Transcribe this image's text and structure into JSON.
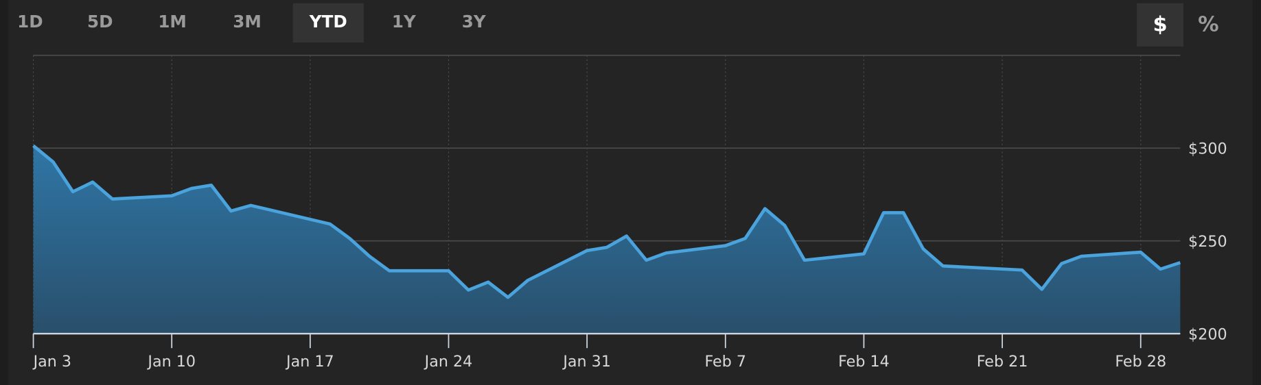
{
  "tabs": {
    "items": [
      "1D",
      "5D",
      "1M",
      "3M",
      "YTD",
      "1Y",
      "3Y"
    ],
    "active": 4
  },
  "units": {
    "items": [
      "$",
      "%"
    ],
    "active": 0
  },
  "chart_data": {
    "type": "area",
    "x": [
      "Jan 3",
      "Jan 4",
      "Jan 5",
      "Jan 6",
      "Jan 7",
      "Jan 10",
      "Jan 11",
      "Jan 12",
      "Jan 13",
      "Jan 14",
      "Jan 18",
      "Jan 19",
      "Jan 20",
      "Jan 21",
      "Jan 24",
      "Jan 25",
      "Jan 26",
      "Jan 27",
      "Jan 28",
      "Jan 31",
      "Feb 1",
      "Feb 2",
      "Feb 3",
      "Feb 4",
      "Feb 7",
      "Feb 8",
      "Feb 9",
      "Feb 10",
      "Feb 11",
      "Feb 14",
      "Feb 15",
      "Feb 16",
      "Feb 17",
      "Feb 18",
      "Feb 22",
      "Feb 23",
      "Feb 24",
      "Feb 25",
      "Feb 28",
      "Mar 1",
      "Mar 2"
    ],
    "values": [
      301.3,
      292.6,
      276.5,
      281.7,
      272.6,
      274.3,
      278.3,
      280,
      266.1,
      269.1,
      259.1,
      251.3,
      241.7,
      233.9,
      233.9,
      223.5,
      227.8,
      219.6,
      228.7,
      244.8,
      246.5,
      252.6,
      239.6,
      243.5,
      247.4,
      251.3,
      267.4,
      258.3,
      239.6,
      243,
      265.2,
      265.2,
      245.7,
      236.5,
      234.3,
      223.9,
      237.8,
      241.7,
      243.9,
      234.8,
      238.3
    ],
    "color": "#4aa3dc",
    "xlim": [
      "Jan 3",
      "Mar 2"
    ],
    "xticks": [
      "Jan 3",
      "Jan 10",
      "Jan 17",
      "Jan 24",
      "Jan 31",
      "Feb 7",
      "Feb 14",
      "Feb 21",
      "Feb 28"
    ],
    "ylim": [
      200,
      350
    ],
    "yticks": [
      {
        "value": 200,
        "label": "$200"
      },
      {
        "value": 250,
        "label": "$250"
      },
      {
        "value": 300,
        "label": "$300"
      }
    ],
    "grid": true
  }
}
